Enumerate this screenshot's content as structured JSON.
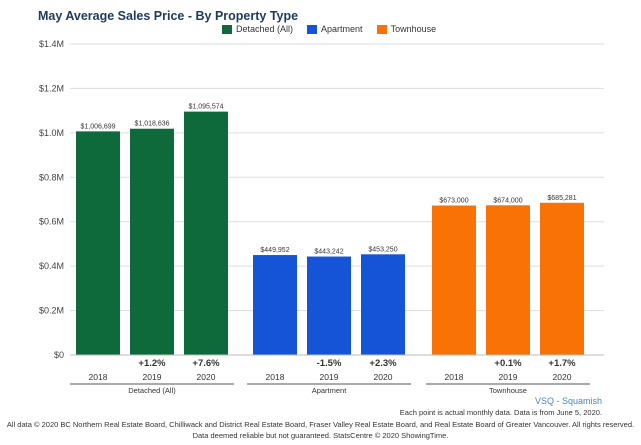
{
  "chart_data": {
    "type": "bar",
    "title": "May Average Sales Price - By Property Type",
    "ylim": [
      0,
      1400000
    ],
    "y_ticks": [
      {
        "value": 0,
        "label": "$0"
      },
      {
        "value": 200000,
        "label": "$0.2M"
      },
      {
        "value": 400000,
        "label": "$0.4M"
      },
      {
        "value": 600000,
        "label": "$0.6M"
      },
      {
        "value": 800000,
        "label": "$0.8M"
      },
      {
        "value": 1000000,
        "label": "$1.0M"
      },
      {
        "value": 1200000,
        "label": "$1.2M"
      },
      {
        "value": 1400000,
        "label": "$1.4M"
      }
    ],
    "grid": true,
    "legend": "top-center",
    "groups": [
      {
        "name": "Detached (All)",
        "color": "#0f6a3b",
        "bars": [
          {
            "year": "2018",
            "value": 1006699,
            "label": "$1,006,699",
            "change": ""
          },
          {
            "year": "2019",
            "value": 1018636,
            "label": "$1,018,636",
            "change": "+1.2%"
          },
          {
            "year": "2020",
            "value": 1095574,
            "label": "$1,095,574",
            "change": "+7.6%"
          }
        ]
      },
      {
        "name": "Apartment",
        "color": "#1554d6",
        "bars": [
          {
            "year": "2018",
            "value": 449952,
            "label": "$449,952",
            "change": ""
          },
          {
            "year": "2019",
            "value": 443242,
            "label": "$443,242",
            "change": "-1.5%"
          },
          {
            "year": "2020",
            "value": 453250,
            "label": "$453,250",
            "change": "+2.3%"
          }
        ]
      },
      {
        "name": "Townhouse",
        "color": "#f87206",
        "bars": [
          {
            "year": "2018",
            "value": 673000,
            "label": "$673,000",
            "change": ""
          },
          {
            "year": "2019",
            "value": 674000,
            "label": "$674,000",
            "change": "+0.1%"
          },
          {
            "year": "2020",
            "value": 685281,
            "label": "$685,281",
            "change": "+1.7%"
          }
        ]
      }
    ]
  },
  "legend_items": [
    {
      "label": "Detached (All)",
      "color": "#0f6a3b"
    },
    {
      "label": "Apartment",
      "color": "#1554d6"
    },
    {
      "label": "Townhouse",
      "color": "#f87206"
    }
  ],
  "source_label": "VSQ - Squamish",
  "note": "Each point is actual monthly data. Data is from June 5, 2020.",
  "footer_line1": "All data © 2020 BC Northern Real Estate Board, Chilliwack and District Real Estate Board, Fraser Valley Real Estate Board, and Real Estate Board of Greater Vancouver. All rights reserved.",
  "footer_line2": "Data deemed reliable but not guaranteed. StatsCentre © 2020 ShowingTime."
}
